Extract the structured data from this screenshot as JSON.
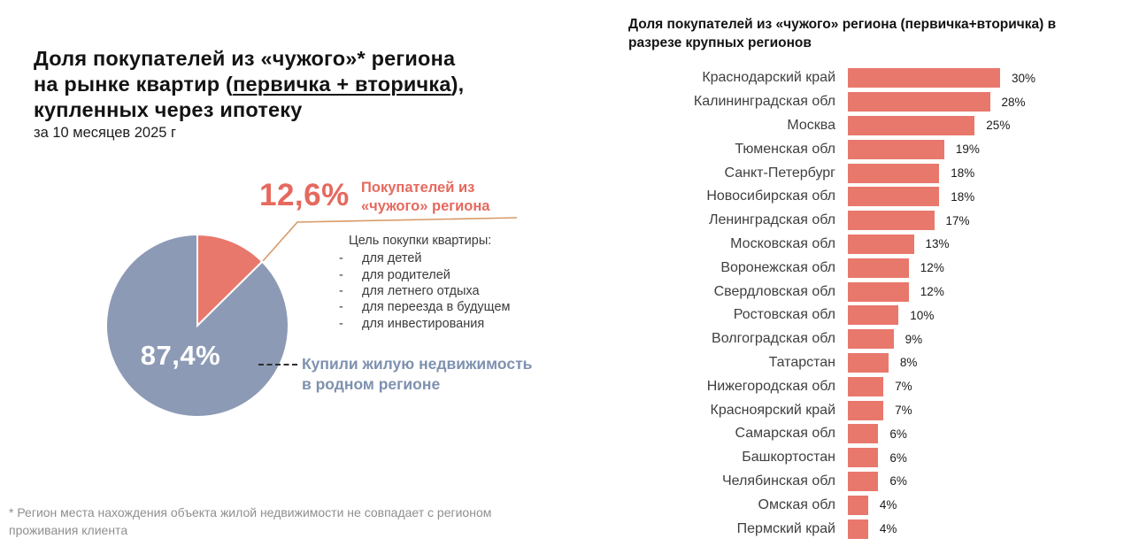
{
  "left_panel": {
    "title_line1": "Доля покупателей из «чужого»* региона",
    "title_line2_pre": "на рынке квартир (",
    "title_line2_underline": "первичка + вторичка",
    "title_line2_post": "),",
    "title_line3": "купленных через ипотеку",
    "subtitle": "за 10 месяцев 2025 г",
    "callout_value": "12,6%",
    "callout_label_line1": "Покупателей из",
    "callout_label_line2": "«чужого» региона",
    "goals_title": "Цель покупки квартиры:",
    "goals": [
      "для детей",
      "для родителей",
      "для летнего отдыха",
      "для переезда в будущем",
      "для инвестирования"
    ],
    "pie_label": "87,4%",
    "home_label_line1": "Купили жилую недвижимость",
    "home_label_line2": "в родном регионе",
    "footnote_line1": "* Регион места нахождения объекта жилой недвижимости не совпадает с регионом",
    "footnote_line2": "проживания клиента"
  },
  "right_panel": {
    "title_line1": "Доля покупателей из «чужого» региона (первичка+вторичка) в",
    "title_line2": "разрезе крупных регионов"
  },
  "colors": {
    "accent_coral": "#E8786C",
    "accent_coral_text": "#E5695E",
    "slate_blue": "#8C9AB5",
    "slate_blue_text": "#7E91AF",
    "connector_line": "#D89A68",
    "footnote_gray": "#8f8f8f"
  },
  "chart_data": [
    {
      "type": "pie",
      "title": "Доля покупателей из «чужого»* региона на рынке квартир (первичка + вторичка), купленных через ипотеку",
      "subtitle": "за 10 месяцев 2025 г",
      "slices": [
        {
          "label": "Покупателей из «чужого» региона",
          "value": 12.6,
          "color": "#E8786C"
        },
        {
          "label": "Купили жилую недвижимость в родном регионе",
          "value": 87.4,
          "color": "#8C9AB5"
        }
      ],
      "annotations": [
        "Цель покупки квартиры: для детей, для родителей, для летнего отдыха, для переезда в будущем, для инвестирования"
      ]
    },
    {
      "type": "bar",
      "orientation": "horizontal",
      "title": "Доля покупателей из «чужого» региона (первичка+вторичка) в разрезе крупных регионов",
      "categories": [
        "Краснодарский край",
        "Калининградская обл",
        "Москва",
        "Тюменская обл",
        "Санкт-Петербург",
        "Новосибирская обл",
        "Ленинградская обл",
        "Московская обл",
        "Воронежская обл",
        "Свердловская обл",
        "Ростовская обл",
        "Волгоградская обл",
        "Татарстан",
        "Нижегородская обл",
        "Красноярский край",
        "Самарская обл",
        "Башкортостан",
        "Челябинская обл",
        "Омская обл",
        "Пермский край"
      ],
      "values": [
        30,
        28,
        25,
        19,
        18,
        18,
        17,
        13,
        12,
        12,
        10,
        9,
        8,
        7,
        7,
        6,
        6,
        6,
        4,
        4
      ],
      "unit": "%",
      "bar_color": "#E8786C",
      "xlim": [
        0,
        30
      ],
      "value_labels": true,
      "grid": false,
      "legend": false
    }
  ]
}
